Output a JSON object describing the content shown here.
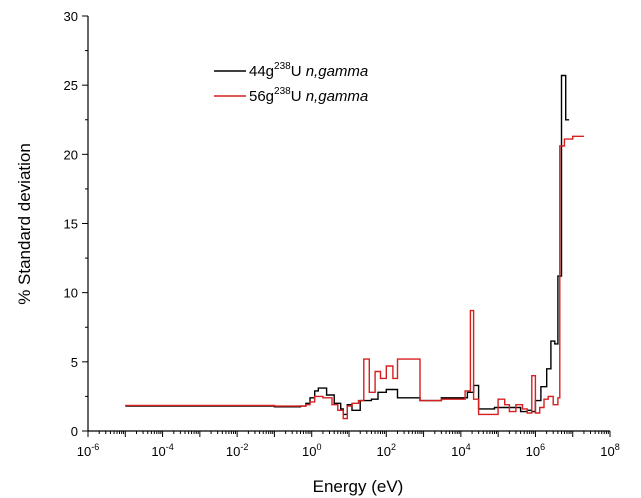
{
  "chart_data": {
    "type": "line",
    "title": "",
    "xlabel": "Energy (eV)",
    "ylabel": "% Standard deviation",
    "xscale": "log",
    "xlim": [
      1e-06,
      100000000.0
    ],
    "ylim": [
      0,
      30
    ],
    "grid": false,
    "legend_position": "top-center",
    "x_ticks": [
      {
        "value": 1e-06,
        "base": "10",
        "exp": "-6"
      },
      {
        "value": 0.0001,
        "base": "10",
        "exp": "-4"
      },
      {
        "value": 0.01,
        "base": "10",
        "exp": "-2"
      },
      {
        "value": 1.0,
        "base": "10",
        "exp": "0"
      },
      {
        "value": 100.0,
        "base": "10",
        "exp": "2"
      },
      {
        "value": 10000.0,
        "base": "10",
        "exp": "4"
      },
      {
        "value": 1000000.0,
        "base": "10",
        "exp": "6"
      },
      {
        "value": 100000000.0,
        "base": "10",
        "exp": "8"
      }
    ],
    "y_ticks": [
      0,
      5,
      10,
      15,
      20,
      25,
      30
    ],
    "series": [
      {
        "name_parts": {
          "pre": "44g",
          "sup": "238",
          "post": "U ",
          "ital": "n,gamma"
        },
        "color": "#000000",
        "x": [
          1e-05,
          0.004,
          0.1,
          0.25,
          0.5,
          0.7,
          0.9,
          1.2,
          1.5,
          2.5,
          4,
          6,
          7,
          9,
          12,
          20,
          40,
          60,
          100,
          200,
          800,
          3000,
          15000.0,
          22000.0,
          30000.0,
          80000.0,
          200000.0,
          400000.0,
          600000.0,
          800000.0,
          1000000.0,
          1400000.0,
          2000000.0,
          2600000.0,
          3300000.0,
          4000000.0,
          5000000.0,
          6500000.0,
          8000000.0
        ],
        "y": [
          1.8,
          1.8,
          1.75,
          1.75,
          1.8,
          2.0,
          2.4,
          2.9,
          3.1,
          2.6,
          2.0,
          1.6,
          1.2,
          1.9,
          1.5,
          2.2,
          2.3,
          2.8,
          3.0,
          2.4,
          2.2,
          2.4,
          2.8,
          3.3,
          1.6,
          1.7,
          1.7,
          1.4,
          1.5,
          1.4,
          2.2,
          3.2,
          4.5,
          6.5,
          6.3,
          11.2,
          25.7,
          22.5,
          22.5
        ]
      },
      {
        "name_parts": {
          "pre": "56g",
          "sup": "238",
          "post": "U ",
          "ital": "n,gamma"
        },
        "color": "#d62020",
        "x": [
          1e-05,
          0.004,
          0.1,
          0.25,
          0.5,
          0.7,
          0.9,
          1.2,
          2,
          3.5,
          5,
          7,
          9,
          12,
          18,
          25,
          35,
          50,
          70,
          100,
          150,
          200,
          800,
          3000,
          13000.0,
          18000.0,
          22000.0,
          30000.0,
          100000.0,
          150000.0,
          200000.0,
          300000.0,
          450000.0,
          600000.0,
          800000.0,
          1000000.0,
          1300000.0,
          1700000.0,
          2200000.0,
          3000000.0,
          4000000.0,
          4500000.0,
          6000000.0,
          10000000.0,
          20000000.0
        ],
        "y": [
          1.85,
          1.85,
          1.8,
          1.8,
          1.8,
          1.9,
          2.1,
          2.5,
          2.4,
          1.9,
          1.5,
          0.9,
          1.8,
          2.0,
          2.2,
          5.2,
          2.8,
          4.3,
          3.8,
          4.7,
          3.8,
          5.2,
          2.2,
          2.3,
          2.9,
          8.7,
          2.3,
          1.2,
          2.3,
          1.9,
          1.4,
          1.9,
          1.6,
          1.3,
          4.0,
          1.3,
          1.7,
          2.3,
          2.5,
          1.9,
          2.4,
          20.6,
          21.1,
          21.3,
          21.3
        ]
      }
    ]
  }
}
